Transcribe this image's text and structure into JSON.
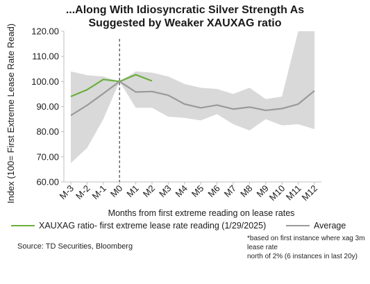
{
  "title_lines": [
    "...Along With Idiosyncratic Silver Strength As",
    "Suggested by Weaker XAUXAG ratio"
  ],
  "source": "Source: TD Securities, Bloomberg",
  "footnote_lines": [
    "*based on first instance where xag 3m lease rate",
    "north of 2% (6 instances in last 20y)"
  ],
  "colors": {
    "ratio": "#6aaf3d",
    "average": "#9a9a9a",
    "band": "#d9d9d9",
    "axis": "#bfbfbf"
  },
  "chart_data": {
    "type": "line",
    "title": "...Along With Idiosyncratic Silver Strength As Suggested by Weaker XAUXAG ratio",
    "xlabel": "Months from first extreme reading on lease rates",
    "ylabel": "Index (100= First Extreme Lease Rate Read)",
    "categories": [
      "M-3",
      "M-2",
      "M-1",
      "M0",
      "M1",
      "M2",
      "M3",
      "M4",
      "M5",
      "M6",
      "M7",
      "M8",
      "M9",
      "M10",
      "M11",
      "M12"
    ],
    "ylim": [
      60,
      120
    ],
    "yticks": [
      "60.00",
      "70.00",
      "80.00",
      "90.00",
      "100.00",
      "110.00",
      "120.00"
    ],
    "series": [
      {
        "name": "XAUXAG ratio- first extreme lease rate reading (1/29/2025)",
        "values": [
          94,
          96.7,
          100.8,
          100,
          102.7,
          100.2,
          null,
          null,
          null,
          null,
          null,
          null,
          null,
          null,
          null,
          null
        ]
      },
      {
        "name": "Average",
        "values": [
          86.5,
          90.5,
          95.2,
          100,
          95.8,
          96,
          94.5,
          91,
          89.5,
          90.6,
          89,
          89.8,
          88.5,
          89.2,
          91,
          96.3
        ]
      }
    ],
    "range_band": {
      "upper": [
        104,
        102.5,
        102,
        100,
        104,
        103.5,
        102,
        99,
        97.5,
        97,
        95,
        97.5,
        93,
        94,
        120,
        120
      ],
      "lower": [
        67.5,
        73.5,
        85,
        100,
        89.5,
        89.5,
        86,
        85.5,
        84.5,
        87,
        83,
        80.5,
        85,
        82.5,
        83,
        81
      ]
    },
    "vertical_marker_at": "M0",
    "grid": false,
    "legend_position": "bottom"
  }
}
